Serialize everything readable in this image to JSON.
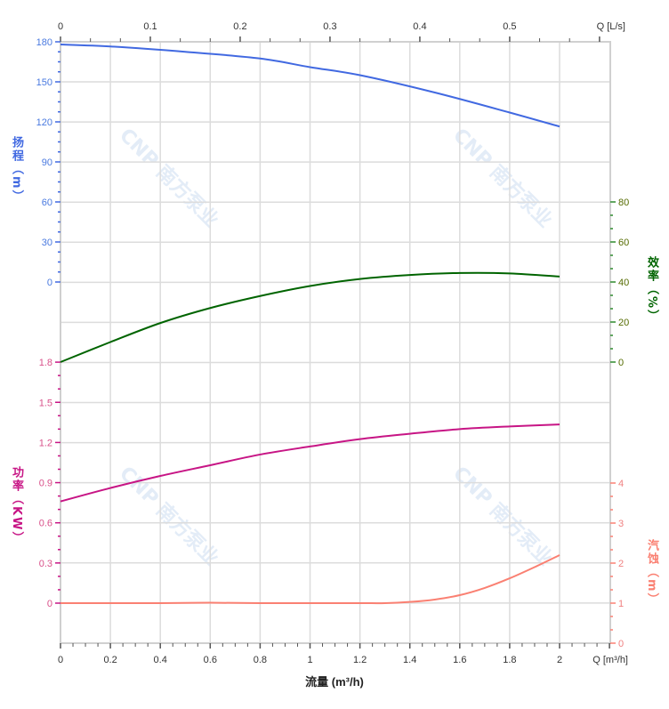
{
  "chart_data": {
    "type": "line",
    "watermark": "CNP 南方泵业",
    "x_axis": {
      "label": "流量 (m³/h)",
      "unit_label": "Q [m³/h]",
      "range": [
        0,
        2.2
      ],
      "ticks": [
        0,
        0.2,
        0.4,
        0.6,
        0.8,
        1,
        1.2,
        1.4,
        1.6,
        1.8,
        2
      ],
      "tick_labels": [
        "0",
        "0.2",
        "0.4",
        "0.6",
        "0.8",
        "1",
        "1.2",
        "1.4",
        "1.6",
        "1.8",
        "2"
      ]
    },
    "x2_axis": {
      "unit_label": "Q [L/s]",
      "ticks": [
        0,
        0.1,
        0.2,
        0.3,
        0.4,
        0.5
      ],
      "tick_labels": [
        "0",
        "0.1",
        "0.2",
        "0.3",
        "0.4",
        "0.5"
      ]
    },
    "axes": {
      "head": {
        "label_main": "扬程",
        "label_unit": "（m）",
        "ticks": [
          0,
          30,
          60,
          90,
          120,
          150,
          180
        ],
        "tick_labels": [
          "0",
          "30",
          "60",
          "90",
          "120",
          "150",
          "180"
        ]
      },
      "power": {
        "label_main": "功率",
        "label_unit": "（KW）",
        "ticks": [
          0,
          0.3,
          0.6,
          0.9,
          1.2,
          1.5,
          1.8
        ],
        "tick_labels": [
          "0",
          "0.3",
          "0.6",
          "0.9",
          "1.2",
          "1.5",
          "1.8"
        ]
      },
      "efficiency": {
        "label_main": "效率",
        "label_unit": "（%）",
        "ticks": [
          0,
          20,
          40,
          60,
          80
        ],
        "tick_labels": [
          "0",
          "20",
          "40",
          "60",
          "80"
        ]
      },
      "npsh": {
        "label_main": "汽蚀",
        "label_unit": "（m）",
        "ticks": [
          0,
          1,
          2,
          3,
          4
        ],
        "tick_labels": [
          "0",
          "1",
          "2",
          "3",
          "4"
        ]
      }
    },
    "series": [
      {
        "name": "扬程 H (m)",
        "axis": "head",
        "color": "#4169e1",
        "x": [
          0,
          0.2,
          0.5,
          0.8,
          1,
          1.2,
          1.5,
          1.8,
          2
        ],
        "y": [
          178,
          176.5,
          172.5,
          167.5,
          161,
          155,
          142,
          127,
          116.5
        ]
      },
      {
        "name": "效率 (%)",
        "axis": "efficiency",
        "color": "#006400",
        "x": [
          0,
          0.2,
          0.4,
          0.6,
          0.8,
          1,
          1.2,
          1.4,
          1.6,
          1.8,
          2
        ],
        "y": [
          0,
          10,
          19.5,
          27,
          33,
          38,
          41.5,
          43.5,
          44.5,
          44.3,
          42.7
        ]
      },
      {
        "name": "功率 (KW)",
        "axis": "power",
        "color": "#c71585",
        "x": [
          0,
          0.2,
          0.4,
          0.6,
          0.8,
          1,
          1.2,
          1.4,
          1.6,
          1.8,
          2
        ],
        "y": [
          0.76,
          0.86,
          0.95,
          1.03,
          1.11,
          1.17,
          1.225,
          1.265,
          1.3,
          1.32,
          1.335
        ]
      },
      {
        "name": "汽蚀 NPSH (m)",
        "axis": "npsh",
        "color": "#fa8072",
        "x": [
          0,
          0.4,
          0.6,
          0.8,
          1,
          1.2,
          1.3,
          1.4,
          1.5,
          1.6,
          1.7,
          1.8,
          1.9,
          2
        ],
        "y": [
          1,
          1,
          1.01,
          1,
          1,
          1,
          1,
          1.03,
          1.09,
          1.2,
          1.38,
          1.62,
          1.9,
          2.2
        ]
      }
    ],
    "grid": true
  }
}
